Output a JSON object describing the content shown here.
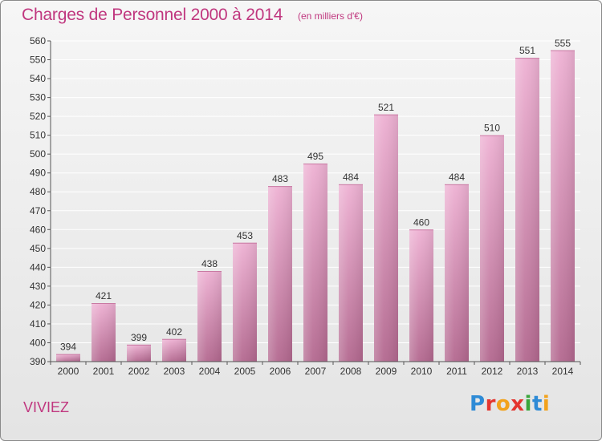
{
  "header": {
    "title": "Charges de Personnel 2000 à 2014",
    "subtitle": "(en milliers d'€)"
  },
  "footer": {
    "commune": "VIVIEZ",
    "logo_text": "Proxiti",
    "logo_colors": [
      "#2e8bd6",
      "#e4352f",
      "#f2a21c",
      "#e4352f",
      "#3aa63c",
      "#2e8bd6",
      "#f2a21c"
    ]
  },
  "colors": {
    "accent": "#c0377f",
    "bar_light": "#eeb1d3",
    "bar_dark": "#b3688f",
    "grid": "#ffffff",
    "axis": "#555555"
  },
  "chart_data": {
    "type": "bar",
    "title": "Charges de Personnel 2000 à 2014",
    "subtitle": "(en milliers d'€)",
    "categories": [
      "2000",
      "2001",
      "2002",
      "2003",
      "2004",
      "2005",
      "2006",
      "2007",
      "2008",
      "2009",
      "2010",
      "2011",
      "2012",
      "2013",
      "2014"
    ],
    "values": [
      394,
      421,
      399,
      402,
      438,
      453,
      483,
      495,
      484,
      521,
      460,
      484,
      510,
      551,
      555
    ],
    "ylim": [
      390,
      560
    ],
    "ytick_step": 10,
    "grid": true,
    "legend": "none",
    "xlabel": "",
    "ylabel": ""
  }
}
